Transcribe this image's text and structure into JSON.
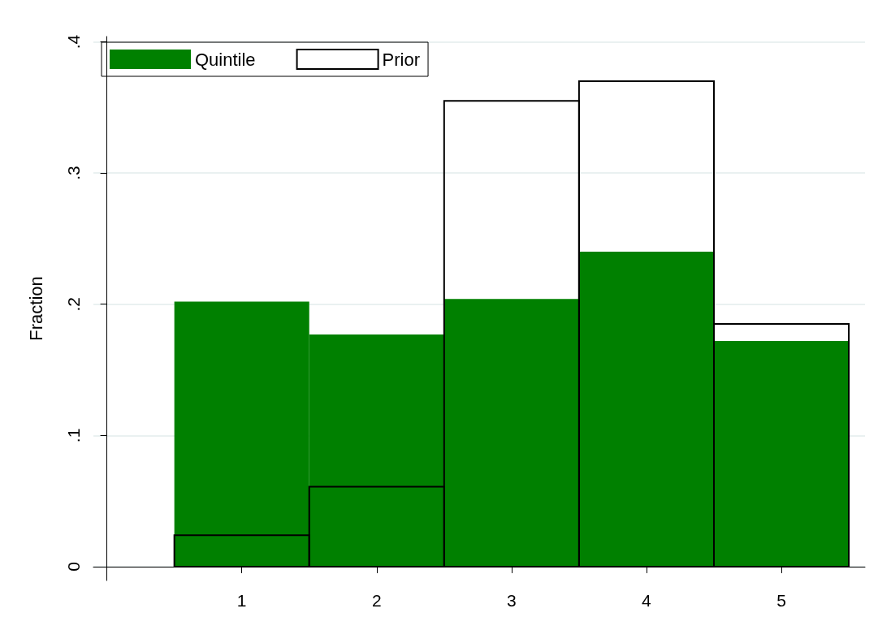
{
  "chart_data": {
    "type": "histogram",
    "ylabel": "Fraction",
    "bins": [
      0.5,
      1.5,
      2.5,
      3.5,
      4.5,
      5.5
    ],
    "series": [
      {
        "name": "Quintile",
        "color": "#008000",
        "values": [
          0.202,
          0.177,
          0.204,
          0.24,
          0.172
        ]
      },
      {
        "name": "Prior",
        "color": "#000000",
        "values": [
          0.024,
          0.061,
          0.355,
          0.37,
          0.185
        ]
      }
    ],
    "xlim": [
      -0.1,
      5.62
    ],
    "xticks": [
      1,
      2,
      3,
      4,
      5
    ],
    "ylim": [
      -0.0105,
      0.404
    ],
    "yticks": [
      0,
      {
        "value": 0.1,
        "label": ".1"
      },
      {
        "value": 0.2,
        "label": ".2"
      },
      {
        "value": 0.3,
        "label": ".3"
      },
      {
        "value": 0.4,
        "label": ".4"
      }
    ],
    "grid": "y",
    "legend": "top left"
  }
}
